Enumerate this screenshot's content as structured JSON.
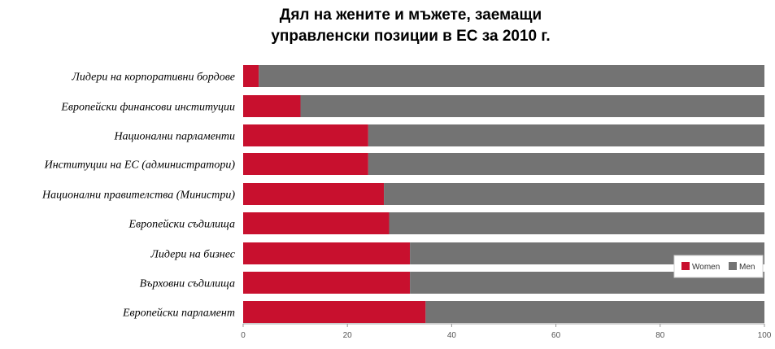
{
  "title_line1": "Дял на жените и мъжете, заемащи",
  "title_line2": "управленски позиции в ЕС за 2010 г.",
  "chart_data": {
    "type": "bar",
    "orientation": "horizontal",
    "stacked": true,
    "categories": [
      "Лидери  на корпоративни бордове",
      "Европейски финансови институции",
      "Национални парламенти",
      "Институции на ЕС (администратори)",
      "Национални правителства (Министри)",
      "Европейски съдилища",
      "Лидери на бизнес",
      "Върховни съдилища",
      "Европейски парламент"
    ],
    "series": [
      {
        "name": "Women",
        "values": [
          3,
          11,
          24,
          24,
          27,
          28,
          32,
          32,
          35
        ],
        "color": "#c8102e"
      },
      {
        "name": "Men",
        "values": [
          97,
          89,
          76,
          76,
          73,
          72,
          68,
          68,
          65
        ],
        "color": "#737373"
      }
    ],
    "xlim": [
      0,
      100
    ],
    "xticks": [
      0,
      20,
      40,
      60,
      80,
      100
    ],
    "grid": false,
    "legend_position": "bottom-right"
  }
}
